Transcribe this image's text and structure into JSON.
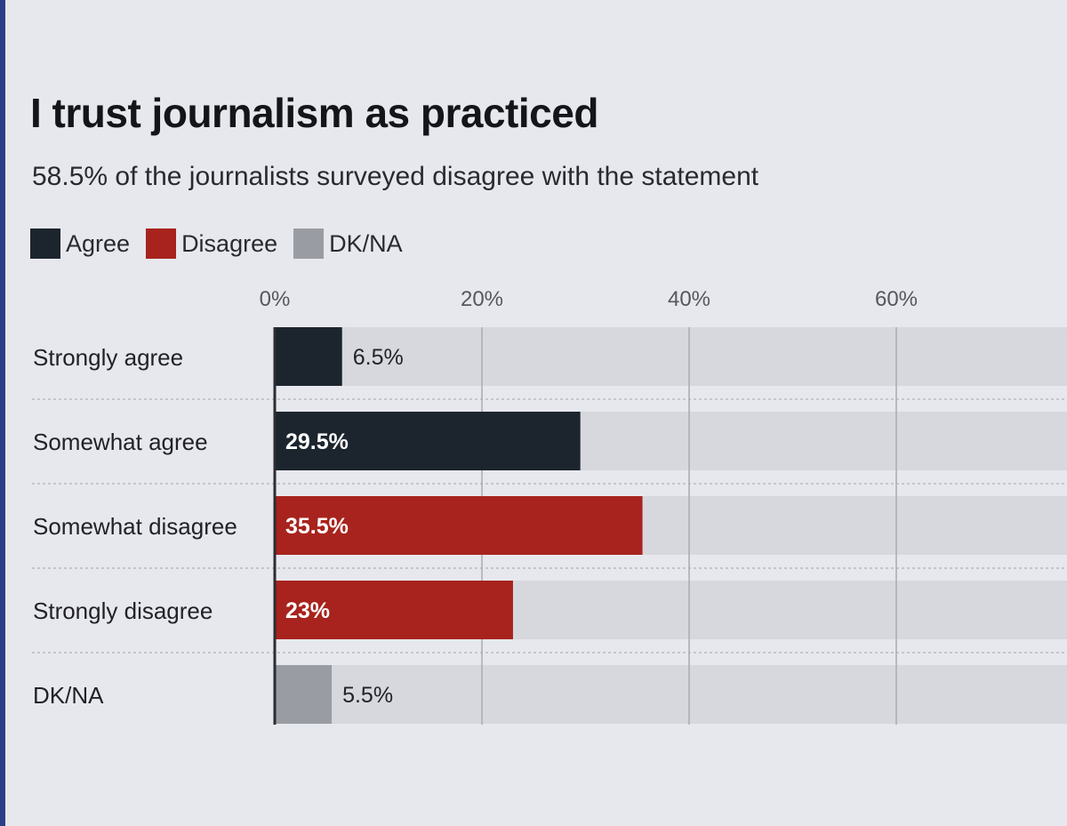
{
  "colors": {
    "background": "#e7e8ee",
    "agree": "#1c252e",
    "disagree": "#a8231d",
    "dknа": "#9a9ca3",
    "track": "#d7d8de",
    "grid": "#a9abb2"
  },
  "chart_data": {
    "type": "bar",
    "orientation": "horizontal",
    "title": "I trust journalism as practiced",
    "subtitle": "58.5% of the journalists surveyed disagree with the statement",
    "legend": [
      {
        "label": "Agree",
        "color": "#1c252e"
      },
      {
        "label": "Disagree",
        "color": "#a8231d"
      },
      {
        "label": "DK/NA",
        "color": "#9a9ca3"
      }
    ],
    "legend_position": "top-left",
    "xticks": [
      "0%",
      "20%",
      "40%",
      "60%"
    ],
    "xtick_values": [
      0,
      20,
      40,
      60
    ],
    "xlim": [
      0,
      76
    ],
    "grid": true,
    "categories": [
      "Strongly agree",
      "Somewhat agree",
      "Somewhat disagree",
      "Strongly disagree",
      "DK/NA"
    ],
    "values": [
      6.5,
      29.5,
      35.5,
      23,
      5.5
    ],
    "value_labels": [
      "6.5%",
      "29.5%",
      "35.5%",
      "23%",
      "5.5%"
    ],
    "groups": [
      "Agree",
      "Agree",
      "Disagree",
      "Disagree",
      "DK/NA"
    ]
  }
}
